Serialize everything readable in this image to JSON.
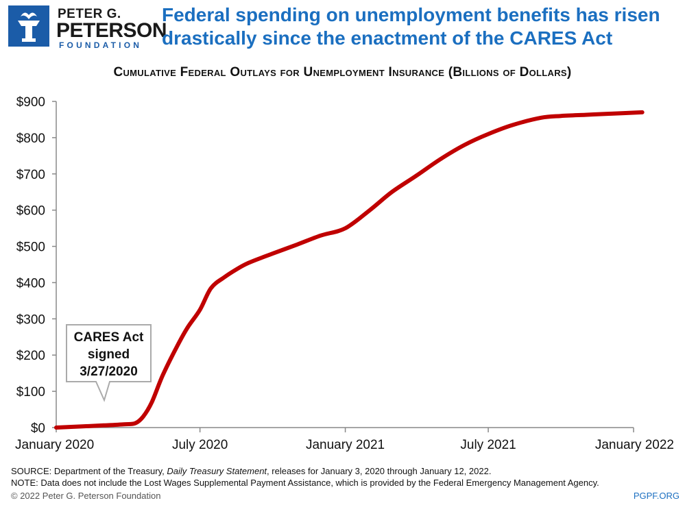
{
  "brand": {
    "line1": "PETER G.",
    "line2": "PETERSON",
    "line3": "FOUNDATION",
    "color": "#1b5ca8"
  },
  "headline": "Federal spending on unemployment benefits has risen drastically since the enactment of the CARES Act",
  "chart_data": {
    "type": "line",
    "title": "Cumulative Federal Outlays for Unemployment Insurance (Billions of Dollars)",
    "xlabel": "",
    "ylabel": "",
    "ylim": [
      0,
      900
    ],
    "yticks": [
      0,
      100,
      200,
      300,
      400,
      500,
      600,
      700,
      800,
      900
    ],
    "ytick_labels": [
      "$0",
      "$100",
      "$200",
      "$300",
      "$400",
      "$500",
      "$600",
      "$700",
      "$800",
      "$900"
    ],
    "xlim": [
      "2020-01-01",
      "2022-01-12"
    ],
    "xticks": [
      "2020-01-01",
      "2020-07-01",
      "2021-01-01",
      "2021-07-01",
      "2022-01-01"
    ],
    "xtick_labels": [
      "January 2020",
      "July 2020",
      "January 2021",
      "July 2021",
      "January 2022"
    ],
    "grid": false,
    "line_color": "#c00000",
    "series": [
      {
        "x": [
          "2020-01-01",
          "2020-02-01",
          "2020-03-01",
          "2020-03-27",
          "2020-04-10",
          "2020-04-20",
          "2020-05-01",
          "2020-05-15",
          "2020-06-01",
          "2020-06-15",
          "2020-07-01",
          "2020-07-15",
          "2020-08-01",
          "2020-08-15",
          "2020-09-01",
          "2020-10-01",
          "2020-11-01",
          "2020-12-01",
          "2021-01-01",
          "2021-02-01",
          "2021-03-01",
          "2021-04-01",
          "2021-05-01",
          "2021-06-01",
          "2021-07-01",
          "2021-08-01",
          "2021-09-06",
          "2021-10-01",
          "2021-11-01",
          "2021-12-01",
          "2022-01-12"
        ],
        "y": [
          0,
          3,
          6,
          9,
          12,
          30,
          70,
          145,
          220,
          275,
          325,
          385,
          415,
          435,
          455,
          480,
          505,
          530,
          550,
          600,
          650,
          695,
          740,
          780,
          810,
          835,
          855,
          860,
          863,
          866,
          870
        ]
      }
    ],
    "annotations": [
      {
        "text": "CARES Act\nsigned\n3/27/2020",
        "x": "2020-03-27"
      }
    ]
  },
  "footer": {
    "source_prefix": "SOURCE: Department of the Treasury, ",
    "source_italic": "Daily Treasury Statement",
    "source_suffix": ", releases for January 3, 2020 through January 12, 2022.",
    "note": "NOTE: Data does not include the Lost Wages Supplemental Payment Assistance, which is provided by the Federal Emergency Management Agency.",
    "copyright": "© 2022 Peter G. Peterson Foundation",
    "site": "PGPF.ORG"
  }
}
